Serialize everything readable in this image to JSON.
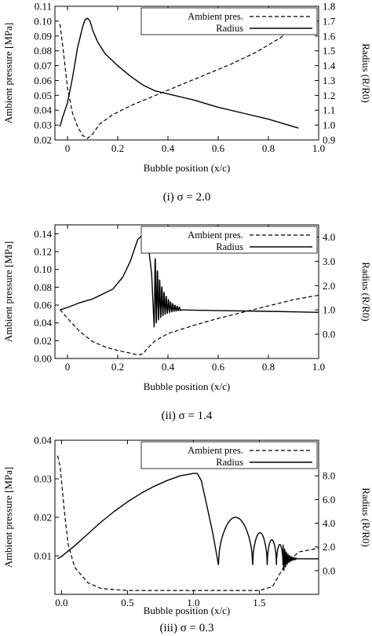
{
  "colors": {
    "ink": "#000000",
    "background": "#ffffff"
  },
  "chart_data": [
    {
      "type": "line",
      "caption": "(i) σ = 2.0",
      "xlabel": "Bubble position (x/c)",
      "ylabel_left": "Ambient pressure [MPa]",
      "ylabel_right": "Radius (R/R0)",
      "xlim": [
        -0.05,
        1.0
      ],
      "ylim_left": [
        0.02,
        0.11
      ],
      "ylim_right": [
        0.9,
        1.8
      ],
      "xticks": [
        "0",
        "0.2",
        "0.4",
        "0.6",
        "0.8",
        "1.0"
      ],
      "yticks_left": [
        "0.02",
        "0.03",
        "0.04",
        "0.05",
        "0.06",
        "0.07",
        "0.08",
        "0.09",
        "0.10",
        "0.11"
      ],
      "yticks_right": [
        "0.9",
        "1.0",
        "1.1",
        "1.2",
        "1.3",
        "1.4",
        "1.5",
        "1.6",
        "1.7",
        "1.8"
      ],
      "legend_position": "top-right",
      "series": [
        {
          "name": "Ambient pres.",
          "axis": "left",
          "style": "dashed",
          "x": [
            -0.03,
            -0.02,
            0.0,
            0.02,
            0.04,
            0.06,
            0.08,
            0.1,
            0.13,
            0.18,
            0.25,
            0.35,
            0.45,
            0.55,
            0.65,
            0.75,
            0.85,
            0.92
          ],
          "y": [
            0.098,
            0.085,
            0.055,
            0.038,
            0.029,
            0.023,
            0.021,
            0.024,
            0.031,
            0.037,
            0.043,
            0.05,
            0.057,
            0.064,
            0.071,
            0.079,
            0.089,
            0.1
          ]
        },
        {
          "name": "Radius",
          "axis": "right",
          "style": "solid",
          "x": [
            -0.03,
            -0.02,
            0.0,
            0.02,
            0.04,
            0.06,
            0.07,
            0.08,
            0.09,
            0.1,
            0.12,
            0.15,
            0.2,
            0.25,
            0.3,
            0.35,
            0.4,
            0.5,
            0.6,
            0.7,
            0.8,
            0.92
          ],
          "y": [
            0.99,
            1.05,
            1.15,
            1.32,
            1.52,
            1.66,
            1.71,
            1.72,
            1.7,
            1.64,
            1.56,
            1.48,
            1.4,
            1.33,
            1.27,
            1.23,
            1.21,
            1.17,
            1.12,
            1.08,
            1.04,
            0.98
          ]
        }
      ]
    },
    {
      "type": "line",
      "caption": "(ii) σ = 1.4",
      "xlabel": "Bubble position (x/c)",
      "ylabel_left": "Ambient pressure [MPa]",
      "ylabel_right": "Radius (R/R0)",
      "xlim": [
        -0.05,
        1.0
      ],
      "ylim_left": [
        0.0,
        0.15
      ],
      "ylim_right": [
        -1.0,
        4.5
      ],
      "xticks": [
        "0",
        "0.2",
        "0.4",
        "0.6",
        "0.8",
        "1.0"
      ],
      "yticks_left": [
        "0.00",
        "0.02",
        "0.04",
        "0.06",
        "0.08",
        "0.10",
        "0.12",
        "0.14"
      ],
      "yticks_right": [
        "0.0",
        "1.0",
        "2.0",
        "3.0",
        "4.0"
      ],
      "legend_position": "top-right",
      "series": [
        {
          "name": "Ambient pres.",
          "axis": "left",
          "style": "dashed",
          "x": [
            -0.03,
            0.0,
            0.05,
            0.1,
            0.15,
            0.2,
            0.25,
            0.28,
            0.3,
            0.32,
            0.35,
            0.4,
            0.5,
            0.6,
            0.7,
            0.8,
            0.9,
            1.0
          ],
          "y": [
            0.055,
            0.045,
            0.03,
            0.019,
            0.013,
            0.009,
            0.006,
            0.004,
            0.005,
            0.012,
            0.02,
            0.028,
            0.037,
            0.045,
            0.052,
            0.059,
            0.066,
            0.071
          ]
        },
        {
          "name": "Radius",
          "axis": "right",
          "style": "solid",
          "x": [
            -0.03,
            0.0,
            0.05,
            0.1,
            0.15,
            0.18,
            0.22,
            0.25,
            0.28,
            0.3,
            0.32,
            0.335,
            0.345
          ],
          "y": [
            1.0,
            1.1,
            1.3,
            1.45,
            1.7,
            1.85,
            2.35,
            3.0,
            3.9,
            4.1,
            3.8,
            2.5,
            0.3
          ],
          "oscillation": {
            "x_start": 0.345,
            "x_end": 0.45,
            "cycles": 12,
            "peak_start": 3.4,
            "trough": 0.3,
            "settle": 1.0
          },
          "tail_x": [
            0.45,
            0.6,
            0.8,
            1.0
          ],
          "tail_y": [
            1.0,
            0.97,
            0.94,
            0.9
          ]
        }
      ]
    },
    {
      "type": "line",
      "caption": "(iii) σ = 0.3",
      "xlabel": "Bubble position (x/c)",
      "ylabel_left": "Ambient pressure [MPa]",
      "ylabel_right": "Radius (R/R0)",
      "xlim": [
        -0.05,
        1.95
      ],
      "ylim_left": [
        0.0,
        0.04
      ],
      "ylim_right": [
        -2.0,
        11.0
      ],
      "xticks": [
        "0.0",
        "0.5",
        "1.0",
        "1.5"
      ],
      "yticks_left": [
        "0.01",
        "0.02",
        "0.03",
        "0.04"
      ],
      "yticks_right": [
        "0.0",
        "2.0",
        "4.0",
        "6.0",
        "8.0"
      ],
      "legend_position": "top-right",
      "series": [
        {
          "name": "Ambient pres.",
          "axis": "left",
          "style": "dashed",
          "x": [
            -0.03,
            -0.01,
            0.02,
            0.05,
            0.1,
            0.2,
            0.3,
            0.5,
            1.0,
            1.5,
            1.6,
            1.65,
            1.7,
            1.8,
            1.95
          ],
          "y": [
            0.036,
            0.033,
            0.022,
            0.013,
            0.007,
            0.003,
            0.0015,
            0.001,
            0.001,
            0.001,
            0.002,
            0.005,
            0.008,
            0.011,
            0.012
          ]
        },
        {
          "name": "Radius",
          "axis": "right",
          "style": "solid",
          "x": [
            -0.03,
            0.0,
            0.1,
            0.2,
            0.3,
            0.4,
            0.5,
            0.6,
            0.7,
            0.8,
            0.9,
            1.0,
            1.03,
            1.06,
            1.1,
            1.15,
            1.19
          ],
          "y": [
            1.0,
            1.2,
            2.1,
            3.1,
            4.1,
            5.0,
            5.8,
            6.5,
            7.1,
            7.6,
            8.0,
            8.2,
            8.2,
            7.6,
            5.6,
            3.0,
            0.5
          ],
          "oscillation_arches": [
            {
              "x0": 1.19,
              "x1": 1.45,
              "peak": 4.5
            },
            {
              "x0": 1.45,
              "x1": 1.56,
              "peak": 3.2
            },
            {
              "x0": 1.56,
              "x1": 1.63,
              "peak": 2.6
            },
            {
              "x0": 1.63,
              "x1": 1.68,
              "peak": 2.2
            }
          ],
          "damped": {
            "x_start": 1.68,
            "x_end": 1.78,
            "cycles": 8,
            "amp": 1.2,
            "settle": 1.0
          },
          "tail_x": [
            1.78,
            1.95
          ],
          "tail_y": [
            1.0,
            1.0
          ]
        }
      ]
    }
  ]
}
